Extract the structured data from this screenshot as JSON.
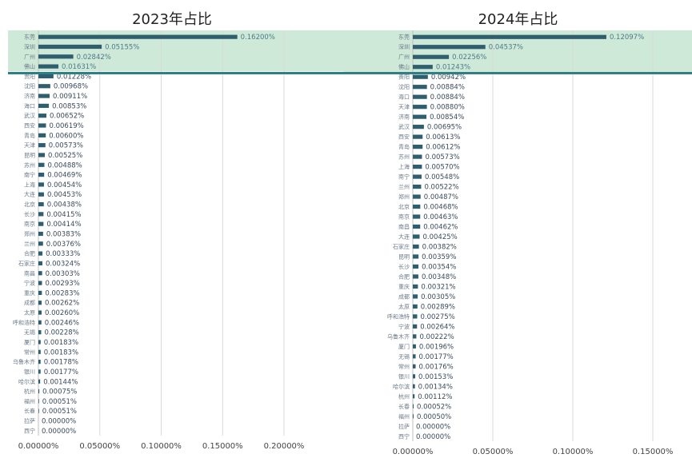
{
  "chart_data": [
    {
      "type": "bar",
      "title": "2023年占比",
      "xlim": [
        0,
        0.2
      ],
      "highlight_count": 4,
      "tick_labels": [
        "0.00000%",
        "0.05000%",
        "0.10000%",
        "0.15000%",
        "0.20000%"
      ],
      "categories": [
        "东莞",
        "深圳",
        "广州",
        "佛山",
        "贵阳",
        "沈阳",
        "济南",
        "海口",
        "武汉",
        "西安",
        "青岛",
        "天津",
        "昆明",
        "苏州",
        "南宁",
        "上海",
        "大连",
        "北京",
        "长沙",
        "南京",
        "郑州",
        "兰州",
        "合肥",
        "石家庄",
        "南昌",
        "宁波",
        "重庆",
        "成都",
        "太原",
        "呼和浩特",
        "无锡",
        "厦门",
        "常州",
        "乌鲁木齐",
        "银川",
        "哈尔滨",
        "杭州",
        "福州",
        "长春",
        "拉萨",
        "西宁"
      ],
      "values": [
        0.162,
        0.05155,
        0.02842,
        0.01631,
        0.01228,
        0.00968,
        0.00911,
        0.00853,
        0.00652,
        0.00619,
        0.006,
        0.00573,
        0.00525,
        0.00488,
        0.00469,
        0.00454,
        0.00453,
        0.00438,
        0.00415,
        0.00414,
        0.00383,
        0.00376,
        0.00333,
        0.00324,
        0.00303,
        0.00293,
        0.00283,
        0.00262,
        0.0026,
        0.00246,
        0.00228,
        0.00183,
        0.00183,
        0.00178,
        0.00177,
        0.00144,
        0.00075,
        0.00051,
        0.00051,
        0.0,
        0.0
      ],
      "value_labels": [
        "0.16200%",
        "0.05155%",
        "0.02842%",
        "0.01631%",
        "0.01228%",
        "0.00968%",
        "0.00911%",
        "0.00853%",
        "0.00652%",
        "0.00619%",
        "0.00600%",
        "0.00573%",
        "0.00525%",
        "0.00488%",
        "0.00469%",
        "0.00454%",
        "0.00453%",
        "0.00438%",
        "0.00415%",
        "0.00414%",
        "0.00383%",
        "0.00376%",
        "0.00333%",
        "0.00324%",
        "0.00303%",
        "0.00293%",
        "0.00283%",
        "0.00262%",
        "0.00260%",
        "0.00246%",
        "0.00228%",
        "0.00183%",
        "0.00183%",
        "0.00178%",
        "0.00177%",
        "0.00144%",
        "0.00075%",
        "0.00051%",
        "0.00051%",
        "0.00000%",
        "0.00000%"
      ]
    },
    {
      "type": "bar",
      "title": "2024年占比",
      "xlim": [
        0,
        0.15
      ],
      "highlight_count": 4,
      "tick_labels": [
        "0.00000%",
        "0.05000%",
        "0.10000%",
        "0.15000%"
      ],
      "categories": [
        "东莞",
        "深圳",
        "广州",
        "佛山",
        "贵阳",
        "沈阳",
        "海口",
        "天津",
        "济南",
        "武汉",
        "西安",
        "青岛",
        "苏州",
        "上海",
        "南宁",
        "兰州",
        "郑州",
        "北京",
        "南京",
        "南昌",
        "大连",
        "石家庄",
        "昆明",
        "长沙",
        "合肥",
        "重庆",
        "成都",
        "太原",
        "呼和浩特",
        "宁波",
        "乌鲁木齐",
        "厦门",
        "无锡",
        "常州",
        "银川",
        "哈尔滨",
        "杭州",
        "长春",
        "福州",
        "拉萨",
        "西宁"
      ],
      "values": [
        0.12097,
        0.04537,
        0.02256,
        0.01243,
        0.00942,
        0.00884,
        0.00884,
        0.0088,
        0.00854,
        0.00695,
        0.00613,
        0.00612,
        0.00573,
        0.0057,
        0.00548,
        0.00522,
        0.00487,
        0.00468,
        0.00463,
        0.00462,
        0.00425,
        0.00382,
        0.00359,
        0.00354,
        0.00348,
        0.00321,
        0.00305,
        0.00289,
        0.00275,
        0.00264,
        0.00222,
        0.00196,
        0.00177,
        0.00176,
        0.00153,
        0.00134,
        0.00112,
        0.00052,
        0.0005,
        0.0,
        0.0
      ],
      "value_labels": [
        "0.12097%",
        "0.04537%",
        "0.02256%",
        "0.01243%",
        "0.00942%",
        "0.00884%",
        "0.00884%",
        "0.00880%",
        "0.00854%",
        "0.00695%",
        "0.00613%",
        "0.00612%",
        "0.00573%",
        "0.00570%",
        "0.00548%",
        "0.00522%",
        "0.00487%",
        "0.00468%",
        "0.00463%",
        "0.00462%",
        "0.00425%",
        "0.00382%",
        "0.00359%",
        "0.00354%",
        "0.00348%",
        "0.00321%",
        "0.00305%",
        "0.00289%",
        "0.00275%",
        "0.00264%",
        "0.00222%",
        "0.00196%",
        "0.00177%",
        "0.00176%",
        "0.00153%",
        "0.00134%",
        "0.00112%",
        "0.00052%",
        "0.00050%",
        "0.00000%",
        "0.00000%"
      ]
    }
  ],
  "colors": {
    "bar": "#2f5f6f",
    "highlight_band": "#cfe9d9",
    "divider": "#2f7f86"
  }
}
